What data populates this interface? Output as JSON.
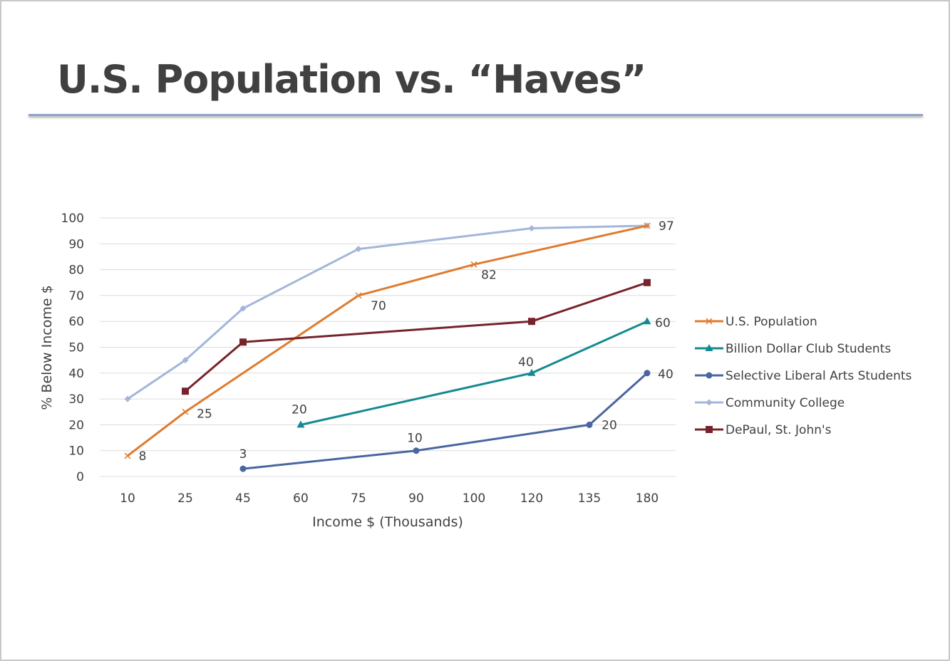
{
  "slide": {
    "title": "U.S. Population vs. “Haves”"
  },
  "chart_data": {
    "type": "line",
    "title": "",
    "xlabel": "Income $ (Thousands)",
    "ylabel": "% Below Income $",
    "categories": [
      "10",
      "25",
      "45",
      "60",
      "75",
      "90",
      "100",
      "120",
      "135",
      "180"
    ],
    "ylim": [
      0,
      100
    ],
    "yticks": [
      0,
      10,
      20,
      30,
      40,
      50,
      60,
      70,
      80,
      90,
      100
    ],
    "grid": true,
    "legend": "right",
    "series": [
      {
        "name": "U.S. Population",
        "color": "#e07b2e",
        "marker": "x",
        "values": [
          8,
          25,
          null,
          null,
          70,
          null,
          82,
          null,
          null,
          97
        ],
        "labels": true
      },
      {
        "name": "Billion Dollar Club Students",
        "color": "#138a91",
        "marker": "triangle",
        "values": [
          null,
          null,
          null,
          20,
          null,
          null,
          null,
          40,
          null,
          60
        ],
        "labels": true
      },
      {
        "name": "Selective Liberal Arts Students",
        "color": "#4a66a0",
        "marker": "circle",
        "values": [
          null,
          null,
          3,
          null,
          null,
          10,
          null,
          null,
          20,
          40
        ],
        "labels": true
      },
      {
        "name": "Community College",
        "color": "#a3b6da",
        "marker": "diamond",
        "values": [
          30,
          45,
          65,
          null,
          88,
          null,
          null,
          96,
          null,
          97
        ],
        "labels": false
      },
      {
        "name": "DePaul, St. John's",
        "color": "#76232b",
        "marker": "square",
        "values": [
          null,
          33,
          52,
          null,
          null,
          null,
          null,
          60,
          null,
          75
        ],
        "labels": false
      }
    ]
  }
}
